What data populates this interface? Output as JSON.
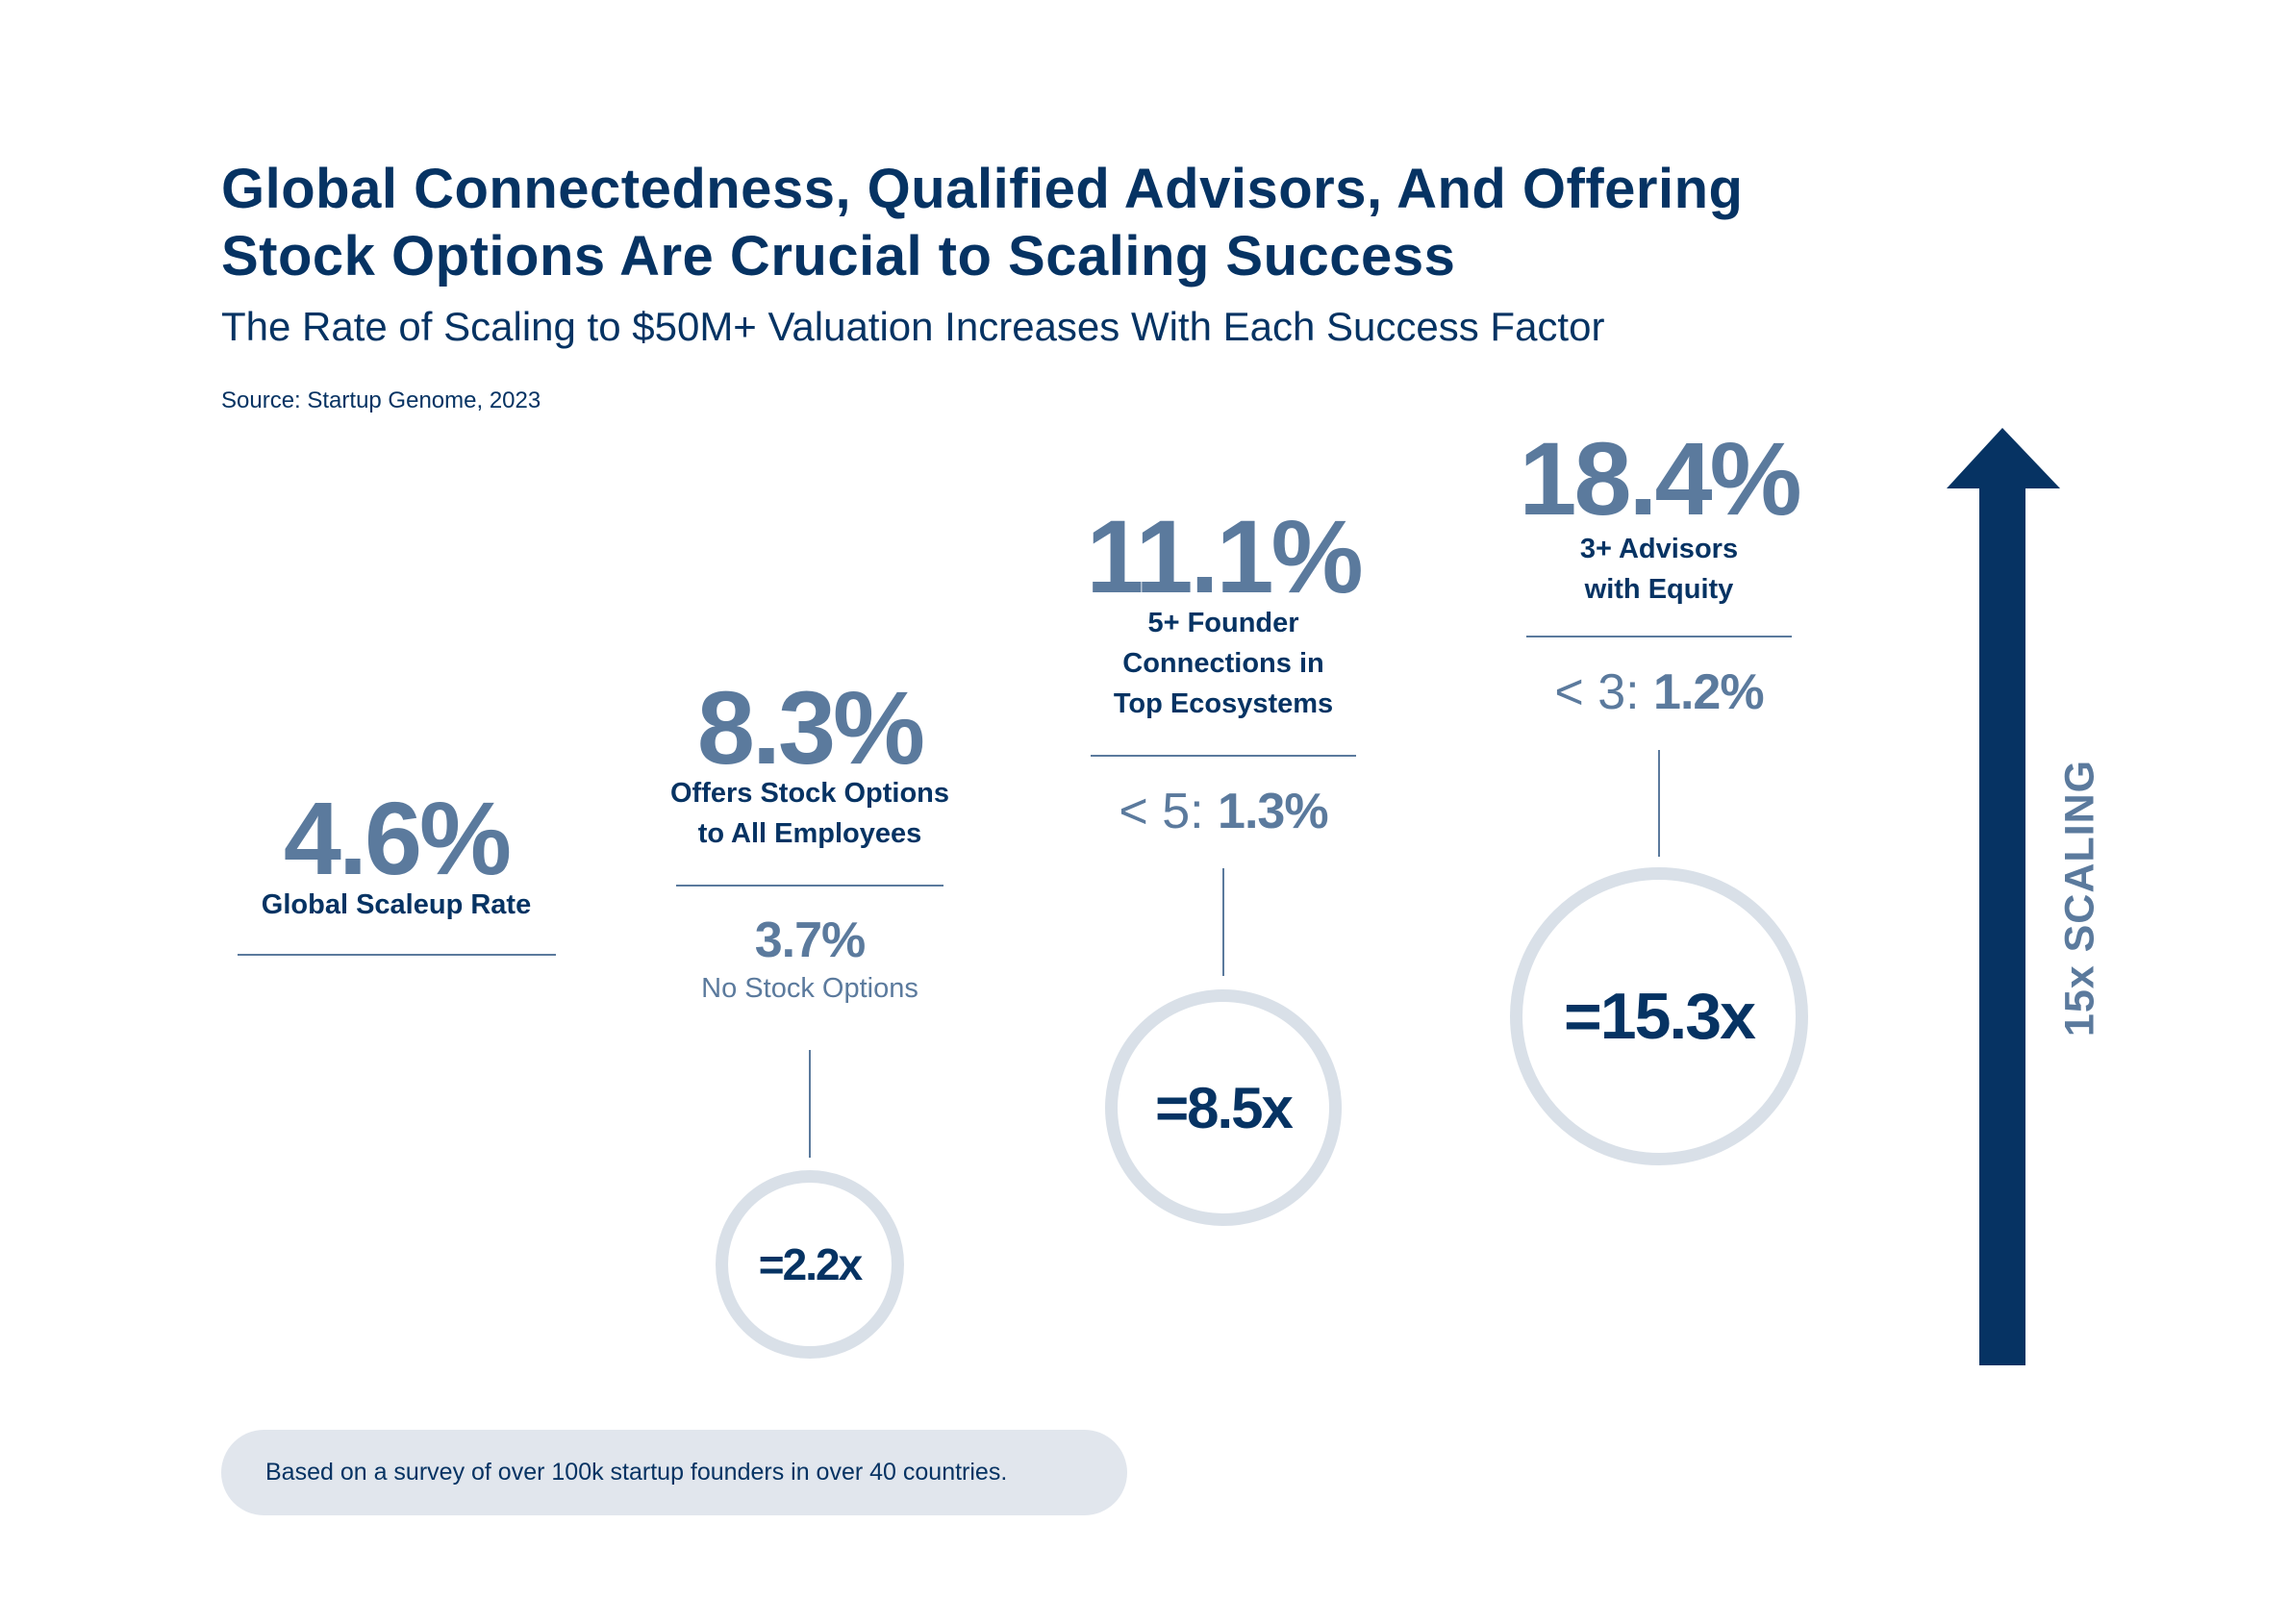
{
  "header": {
    "title_line1": "Global Connectedness, Qualified Advisors, And Offering",
    "title_line2": "Stock Options Are Crucial to Scaling Success",
    "subtitle": "The Rate of Scaling to $50M+ Valuation Increases With Each Success Factor",
    "source": "Source: Startup Genome, 2023"
  },
  "factors": [
    {
      "value": "4.6%",
      "label_lines": [
        "Global Scaleup Rate"
      ]
    },
    {
      "value": "8.3%",
      "label_lines": [
        "Offers Stock Options",
        "to All Employees"
      ],
      "comparison_value": "3.7%",
      "comparison_label": "No Stock Options",
      "multiplier": "=2.2x"
    },
    {
      "value": "11.1%",
      "label_lines": [
        "5+ Founder",
        "Connections in",
        "Top Ecosystems"
      ],
      "comparison_prefix": "< 5:",
      "comparison_value": "1.3%",
      "multiplier": "=8.5x"
    },
    {
      "value": "18.4%",
      "label_lines": [
        "3+ Advisors",
        "with Equity"
      ],
      "comparison_prefix": "< 3:",
      "comparison_value": "1.2%",
      "multiplier": "=15.3x"
    }
  ],
  "arrow": {
    "label": "15x SCALING",
    "icon": "up-arrow-icon"
  },
  "footer": {
    "note": "Based on a survey of over 100k startup founders in over 40 countries."
  },
  "colors": {
    "navy": "#063363",
    "slate": "#5b7a9d",
    "circle": "#d9e0e8",
    "pill": "#e1e6ed"
  }
}
